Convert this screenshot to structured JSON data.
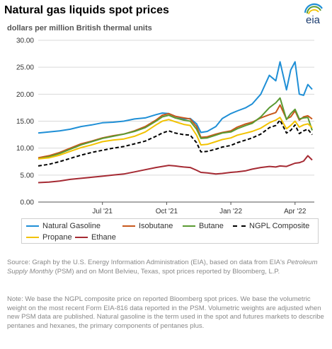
{
  "title": "Natural gas liquids spot prices",
  "subtitle": "dollars per million British thermal units",
  "logo_text": "eia",
  "source": {
    "prefix": "Source: Graph by the U.S. Energy Information Administration (EIA), based on data from EIA's ",
    "publication": "Petroleum Supply Monthly",
    "suffix": " (PSM) and on Mont Belvieu, Texas, spot prices reported by Bloomberg, L.P."
  },
  "note": "Note: We base the NGPL composite price on reported Bloomberg spot prices. We base the volumetric weight on the most recent Form EIA-816 data reported in the PSM. Volumetric weights are adjusted when new PSM data are published. Natural gasoline is the term used in the spot and futures markets to describe pentanes and hexanes, the primary components of pentanes plus.",
  "colors": {
    "natural_gasoline": "#1f8fd6",
    "isobutane": "#c8581c",
    "butane": "#5a9a32",
    "ngpl_composite": "#000000",
    "propane": "#f2c200",
    "ethane": "#a52a33",
    "grid": "#d9d9d9",
    "axis": "#555555"
  },
  "chart_data": {
    "type": "line",
    "x_ticks": [
      {
        "label": "Jul '21",
        "t": 3
      },
      {
        "label": "Oct '21",
        "t": 6
      },
      {
        "label": "Jan '22",
        "t": 9
      },
      {
        "label": "Apr '22",
        "t": 12
      }
    ],
    "x_range": [
      0,
      12.9
    ],
    "x_unit": "months since Apr 1, 2021",
    "ylim": [
      0,
      30
    ],
    "y_ticks": [
      "0.00",
      "5.00",
      "10.00",
      "15.00",
      "20.00",
      "25.00",
      "30.00"
    ],
    "grid": "horizontal",
    "legend_position": "bottom",
    "series": [
      {
        "name": "Natural Gasoline",
        "key": "natural_gasoline",
        "dash": "solid",
        "points": [
          [
            0,
            12.8
          ],
          [
            0.5,
            13.0
          ],
          [
            1,
            13.2
          ],
          [
            1.5,
            13.5
          ],
          [
            2,
            14.0
          ],
          [
            2.5,
            14.3
          ],
          [
            3,
            14.7
          ],
          [
            3.5,
            14.8
          ],
          [
            4,
            15.0
          ],
          [
            4.5,
            15.4
          ],
          [
            5,
            15.6
          ],
          [
            5.5,
            16.2
          ],
          [
            5.8,
            16.5
          ],
          [
            6.1,
            16.4
          ],
          [
            6.4,
            15.9
          ],
          [
            6.8,
            15.4
          ],
          [
            7.1,
            15.5
          ],
          [
            7.4,
            14.5
          ],
          [
            7.6,
            12.9
          ],
          [
            7.9,
            13.1
          ],
          [
            8.3,
            14.0
          ],
          [
            8.6,
            15.5
          ],
          [
            9,
            16.4
          ],
          [
            9.3,
            16.9
          ],
          [
            9.7,
            17.5
          ],
          [
            10,
            18.2
          ],
          [
            10.4,
            20.0
          ],
          [
            10.8,
            23.5
          ],
          [
            11.1,
            22.5
          ],
          [
            11.3,
            26.0
          ],
          [
            11.6,
            20.8
          ],
          [
            11.8,
            24.5
          ],
          [
            12,
            26.0
          ],
          [
            12.2,
            20.0
          ],
          [
            12.4,
            19.8
          ],
          [
            12.6,
            21.8
          ],
          [
            12.8,
            20.9
          ]
        ]
      },
      {
        "name": "Isobutane",
        "key": "isobutane",
        "dash": "solid",
        "points": [
          [
            0,
            8.2
          ],
          [
            0.5,
            8.6
          ],
          [
            1,
            9.2
          ],
          [
            1.5,
            10.0
          ],
          [
            2,
            10.8
          ],
          [
            2.5,
            11.3
          ],
          [
            3,
            11.9
          ],
          [
            3.5,
            12.3
          ],
          [
            4,
            12.6
          ],
          [
            4.5,
            13.2
          ],
          [
            5,
            14.0
          ],
          [
            5.5,
            15.2
          ],
          [
            5.8,
            16.1
          ],
          [
            6.1,
            16.4
          ],
          [
            6.4,
            15.9
          ],
          [
            6.8,
            15.6
          ],
          [
            7.1,
            15.4
          ],
          [
            7.4,
            14.0
          ],
          [
            7.6,
            12.0
          ],
          [
            7.9,
            12.1
          ],
          [
            8.3,
            12.6
          ],
          [
            8.6,
            12.9
          ],
          [
            9,
            13.2
          ],
          [
            9.3,
            13.9
          ],
          [
            9.7,
            14.5
          ],
          [
            10,
            14.8
          ],
          [
            10.4,
            15.6
          ],
          [
            10.8,
            16.2
          ],
          [
            11.1,
            16.6
          ],
          [
            11.3,
            18.0
          ],
          [
            11.6,
            15.4
          ],
          [
            11.8,
            15.8
          ],
          [
            12,
            16.9
          ],
          [
            12.2,
            15.2
          ],
          [
            12.4,
            15.8
          ],
          [
            12.6,
            16.0
          ],
          [
            12.8,
            15.4
          ]
        ]
      },
      {
        "name": "Butane",
        "key": "butane",
        "dash": "solid",
        "points": [
          [
            0,
            8.0
          ],
          [
            0.5,
            8.4
          ],
          [
            1,
            9.0
          ],
          [
            1.5,
            9.8
          ],
          [
            2,
            10.6
          ],
          [
            2.5,
            11.2
          ],
          [
            3,
            11.8
          ],
          [
            3.5,
            12.2
          ],
          [
            4,
            12.6
          ],
          [
            4.5,
            13.1
          ],
          [
            5,
            13.8
          ],
          [
            5.5,
            15.0
          ],
          [
            5.8,
            15.8
          ],
          [
            6.1,
            16.1
          ],
          [
            6.4,
            15.6
          ],
          [
            6.8,
            15.2
          ],
          [
            7.1,
            15.0
          ],
          [
            7.4,
            13.5
          ],
          [
            7.6,
            11.8
          ],
          [
            7.9,
            11.9
          ],
          [
            8.3,
            12.4
          ],
          [
            8.6,
            12.8
          ],
          [
            9,
            13.0
          ],
          [
            9.3,
            13.6
          ],
          [
            9.7,
            14.2
          ],
          [
            10,
            14.6
          ],
          [
            10.4,
            15.8
          ],
          [
            10.8,
            17.5
          ],
          [
            11.1,
            18.4
          ],
          [
            11.3,
            19.3
          ],
          [
            11.6,
            15.3
          ],
          [
            11.8,
            16.4
          ],
          [
            12,
            17.2
          ],
          [
            12.2,
            15.4
          ],
          [
            12.4,
            15.6
          ],
          [
            12.6,
            15.7
          ],
          [
            12.8,
            13.3
          ]
        ]
      },
      {
        "name": "NGPL Composite",
        "key": "ngpl_composite",
        "dash": "dashed",
        "points": [
          [
            0,
            6.7
          ],
          [
            0.5,
            7.0
          ],
          [
            1,
            7.5
          ],
          [
            1.5,
            8.1
          ],
          [
            2,
            8.7
          ],
          [
            2.5,
            9.2
          ],
          [
            3,
            9.6
          ],
          [
            3.5,
            10.0
          ],
          [
            4,
            10.3
          ],
          [
            4.5,
            10.8
          ],
          [
            5,
            11.3
          ],
          [
            5.5,
            12.2
          ],
          [
            5.8,
            12.8
          ],
          [
            6.1,
            13.2
          ],
          [
            6.4,
            12.8
          ],
          [
            6.8,
            12.5
          ],
          [
            7.1,
            12.4
          ],
          [
            7.4,
            11.0
          ],
          [
            7.6,
            9.3
          ],
          [
            7.9,
            9.4
          ],
          [
            8.3,
            9.8
          ],
          [
            8.6,
            10.2
          ],
          [
            9,
            10.5
          ],
          [
            9.3,
            11.0
          ],
          [
            9.7,
            11.5
          ],
          [
            10,
            11.9
          ],
          [
            10.4,
            12.6
          ],
          [
            10.8,
            13.8
          ],
          [
            11.1,
            14.2
          ],
          [
            11.3,
            15.2
          ],
          [
            11.6,
            12.8
          ],
          [
            11.8,
            13.3
          ],
          [
            12,
            14.3
          ],
          [
            12.2,
            12.7
          ],
          [
            12.4,
            13.2
          ],
          [
            12.6,
            13.5
          ],
          [
            12.8,
            12.5
          ]
        ]
      },
      {
        "name": "Propane",
        "key": "propane",
        "dash": "solid",
        "points": [
          [
            0,
            8.0
          ],
          [
            0.5,
            8.2
          ],
          [
            1,
            8.7
          ],
          [
            1.5,
            9.4
          ],
          [
            2,
            10.1
          ],
          [
            2.5,
            10.6
          ],
          [
            3,
            11.2
          ],
          [
            3.5,
            11.5
          ],
          [
            4,
            11.7
          ],
          [
            4.5,
            12.2
          ],
          [
            5,
            13.0
          ],
          [
            5.5,
            14.3
          ],
          [
            5.8,
            15.0
          ],
          [
            6.1,
            15.3
          ],
          [
            6.4,
            14.9
          ],
          [
            6.8,
            14.4
          ],
          [
            7.1,
            14.2
          ],
          [
            7.4,
            12.4
          ],
          [
            7.6,
            10.6
          ],
          [
            7.9,
            10.7
          ],
          [
            8.3,
            11.2
          ],
          [
            8.6,
            11.6
          ],
          [
            9,
            11.9
          ],
          [
            9.3,
            12.4
          ],
          [
            9.7,
            12.8
          ],
          [
            10,
            13.1
          ],
          [
            10.4,
            13.7
          ],
          [
            10.8,
            14.7
          ],
          [
            11.1,
            15.2
          ],
          [
            11.3,
            15.7
          ],
          [
            11.6,
            13.6
          ],
          [
            11.8,
            14.2
          ],
          [
            12,
            15.0
          ],
          [
            12.2,
            13.9
          ],
          [
            12.4,
            14.3
          ],
          [
            12.6,
            14.5
          ],
          [
            12.8,
            13.8
          ]
        ]
      },
      {
        "name": "Ethane",
        "key": "ethane",
        "dash": "solid",
        "points": [
          [
            0,
            3.6
          ],
          [
            0.5,
            3.7
          ],
          [
            1,
            3.9
          ],
          [
            1.5,
            4.2
          ],
          [
            2,
            4.4
          ],
          [
            2.5,
            4.6
          ],
          [
            3,
            4.8
          ],
          [
            3.5,
            5.0
          ],
          [
            4,
            5.2
          ],
          [
            4.5,
            5.6
          ],
          [
            5,
            6.0
          ],
          [
            5.5,
            6.4
          ],
          [
            5.8,
            6.6
          ],
          [
            6.1,
            6.8
          ],
          [
            6.4,
            6.7
          ],
          [
            6.8,
            6.5
          ],
          [
            7.1,
            6.4
          ],
          [
            7.4,
            5.9
          ],
          [
            7.6,
            5.5
          ],
          [
            7.9,
            5.4
          ],
          [
            8.3,
            5.2
          ],
          [
            8.6,
            5.3
          ],
          [
            9,
            5.5
          ],
          [
            9.3,
            5.6
          ],
          [
            9.7,
            5.8
          ],
          [
            10,
            6.1
          ],
          [
            10.4,
            6.4
          ],
          [
            10.8,
            6.6
          ],
          [
            11.1,
            6.5
          ],
          [
            11.3,
            6.7
          ],
          [
            11.6,
            6.6
          ],
          [
            11.8,
            6.9
          ],
          [
            12,
            7.2
          ],
          [
            12.2,
            7.3
          ],
          [
            12.4,
            7.6
          ],
          [
            12.6,
            8.6
          ],
          [
            12.8,
            7.8
          ]
        ]
      }
    ]
  }
}
